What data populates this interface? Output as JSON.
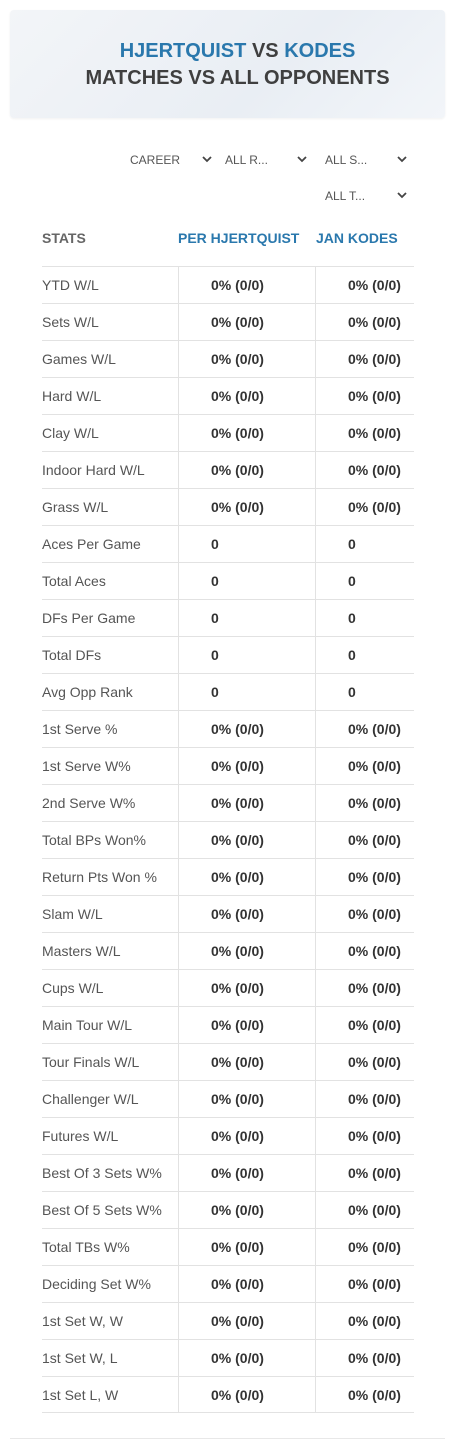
{
  "header": {
    "title": [
      "HJERTQUIST",
      "VS",
      "KODES",
      "MATCHES VS ALL OPPONENTS"
    ]
  },
  "filters": [
    "CAREER",
    "ALL R...",
    "ALL S...",
    "ALL T..."
  ],
  "table": {
    "columns": [
      "STATS",
      "PER HJERTQUIST",
      "JAN KODES"
    ],
    "rows": [
      [
        "YTD W/L",
        "0% (0/0)",
        "0% (0/0)"
      ],
      [
        "Sets W/L",
        "0% (0/0)",
        "0% (0/0)"
      ],
      [
        "Games W/L",
        "0% (0/0)",
        "0% (0/0)"
      ],
      [
        "Hard W/L",
        "0% (0/0)",
        "0% (0/0)"
      ],
      [
        "Clay W/L",
        "0% (0/0)",
        "0% (0/0)"
      ],
      [
        "Indoor Hard W/L",
        "0% (0/0)",
        "0% (0/0)"
      ],
      [
        "Grass W/L",
        "0% (0/0)",
        "0% (0/0)"
      ],
      [
        "Aces Per Game",
        "0",
        "0"
      ],
      [
        "Total Aces",
        "0",
        "0"
      ],
      [
        "DFs Per Game",
        "0",
        "0"
      ],
      [
        "Total DFs",
        "0",
        "0"
      ],
      [
        "Avg Opp Rank",
        "0",
        "0"
      ],
      [
        "1st Serve %",
        "0% (0/0)",
        "0% (0/0)"
      ],
      [
        "1st Serve W%",
        "0% (0/0)",
        "0% (0/0)"
      ],
      [
        "2nd Serve W%",
        "0% (0/0)",
        "0% (0/0)"
      ],
      [
        "Total BPs Won%",
        "0% (0/0)",
        "0% (0/0)"
      ],
      [
        "Return Pts Won %",
        "0% (0/0)",
        "0% (0/0)"
      ],
      [
        "Slam W/L",
        "0% (0/0)",
        "0% (0/0)"
      ],
      [
        "Masters W/L",
        "0% (0/0)",
        "0% (0/0)"
      ],
      [
        "Cups W/L",
        "0% (0/0)",
        "0% (0/0)"
      ],
      [
        "Main Tour W/L",
        "0% (0/0)",
        "0% (0/0)"
      ],
      [
        "Tour Finals W/L",
        "0% (0/0)",
        "0% (0/0)"
      ],
      [
        "Challenger W/L",
        "0% (0/0)",
        "0% (0/0)"
      ],
      [
        "Futures W/L",
        "0% (0/0)",
        "0% (0/0)"
      ],
      [
        "Best Of 3 Sets W%",
        "0% (0/0)",
        "0% (0/0)"
      ],
      [
        "Best Of 5 Sets W%",
        "0% (0/0)",
        "0% (0/0)"
      ],
      [
        "Total TBs W%",
        "0% (0/0)",
        "0% (0/0)"
      ],
      [
        "Deciding Set W%",
        "0% (0/0)",
        "0% (0/0)"
      ],
      [
        "1st Set W, W",
        "0% (0/0)",
        "0% (0/0)"
      ],
      [
        "1st Set W, L",
        "0% (0/0)",
        "0% (0/0)"
      ],
      [
        "1st Set L, W",
        "0% (0/0)",
        "0% (0/0)"
      ]
    ]
  }
}
